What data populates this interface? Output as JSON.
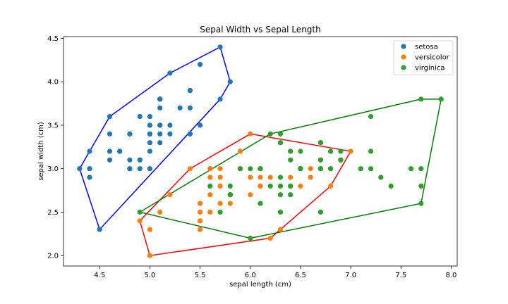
{
  "chart_data": {
    "type": "scatter",
    "title": "Sepal Width vs Sepal Length",
    "xlabel": "sepal length (cm)",
    "ylabel": "sepal width (cm)",
    "xlim": [
      4.14,
      8.06
    ],
    "ylim": [
      1.88,
      4.52
    ],
    "xticks": [
      4.5,
      5.0,
      5.5,
      6.0,
      6.5,
      7.0,
      7.5,
      8.0
    ],
    "xtick_labels": [
      "4.5",
      "5.0",
      "5.5",
      "6.0",
      "6.5",
      "7.0",
      "7.5",
      "8.0"
    ],
    "yticks": [
      2.0,
      2.5,
      3.0,
      3.5,
      4.0,
      4.5
    ],
    "ytick_labels": [
      "2.0",
      "2.5",
      "3.0",
      "3.5",
      "4.0",
      "4.5"
    ],
    "grid": false,
    "legend_position": "top-right",
    "series": [
      {
        "name": "setosa",
        "color": "#1f77b4",
        "points": [
          [
            5.1,
            3.5
          ],
          [
            4.9,
            3.0
          ],
          [
            4.7,
            3.2
          ],
          [
            4.6,
            3.1
          ],
          [
            5.0,
            3.6
          ],
          [
            5.4,
            3.9
          ],
          [
            4.6,
            3.4
          ],
          [
            5.0,
            3.4
          ],
          [
            4.4,
            2.9
          ],
          [
            4.9,
            3.1
          ],
          [
            5.4,
            3.7
          ],
          [
            4.8,
            3.4
          ],
          [
            4.8,
            3.0
          ],
          [
            4.3,
            3.0
          ],
          [
            5.8,
            4.0
          ],
          [
            5.7,
            4.4
          ],
          [
            5.4,
            3.9
          ],
          [
            5.1,
            3.5
          ],
          [
            5.7,
            3.8
          ],
          [
            5.1,
            3.8
          ],
          [
            5.4,
            3.4
          ],
          [
            5.1,
            3.7
          ],
          [
            4.6,
            3.6
          ],
          [
            5.1,
            3.3
          ],
          [
            4.8,
            3.4
          ],
          [
            5.0,
            3.0
          ],
          [
            5.0,
            3.4
          ],
          [
            5.2,
            3.5
          ],
          [
            5.2,
            3.4
          ],
          [
            4.7,
            3.2
          ],
          [
            4.8,
            3.1
          ],
          [
            5.4,
            3.4
          ],
          [
            5.2,
            4.1
          ],
          [
            5.5,
            4.2
          ],
          [
            4.9,
            3.1
          ],
          [
            5.0,
            3.2
          ],
          [
            5.5,
            3.5
          ],
          [
            4.9,
            3.6
          ],
          [
            4.4,
            3.0
          ],
          [
            5.1,
            3.4
          ],
          [
            5.0,
            3.5
          ],
          [
            4.5,
            2.3
          ],
          [
            4.4,
            3.2
          ],
          [
            5.0,
            3.5
          ],
          [
            5.1,
            3.8
          ],
          [
            4.8,
            3.0
          ],
          [
            5.1,
            3.8
          ],
          [
            4.6,
            3.2
          ],
          [
            5.3,
            3.7
          ],
          [
            5.0,
            3.3
          ]
        ],
        "hull": [
          [
            4.3,
            3.0
          ],
          [
            4.5,
            2.3
          ],
          [
            5.7,
            3.8
          ],
          [
            5.8,
            4.0
          ],
          [
            5.7,
            4.4
          ],
          [
            5.2,
            4.1
          ],
          [
            4.6,
            3.6
          ],
          [
            4.4,
            3.2
          ]
        ]
      },
      {
        "name": "versicolor",
        "color": "#ff7f0e",
        "points": [
          [
            7.0,
            3.2
          ],
          [
            6.4,
            3.2
          ],
          [
            6.9,
            3.1
          ],
          [
            5.5,
            2.3
          ],
          [
            6.5,
            2.8
          ],
          [
            5.7,
            2.8
          ],
          [
            6.3,
            3.3
          ],
          [
            4.9,
            2.4
          ],
          [
            6.6,
            2.9
          ],
          [
            5.2,
            2.7
          ],
          [
            5.0,
            2.0
          ],
          [
            5.9,
            3.0
          ],
          [
            6.0,
            2.2
          ],
          [
            6.1,
            2.9
          ],
          [
            5.6,
            2.9
          ],
          [
            6.7,
            3.1
          ],
          [
            5.6,
            3.0
          ],
          [
            5.8,
            2.7
          ],
          [
            6.2,
            2.2
          ],
          [
            5.6,
            2.5
          ],
          [
            5.9,
            3.2
          ],
          [
            6.1,
            2.8
          ],
          [
            6.3,
            2.5
          ],
          [
            6.1,
            2.8
          ],
          [
            6.4,
            2.9
          ],
          [
            6.6,
            3.0
          ],
          [
            6.8,
            2.8
          ],
          [
            6.7,
            3.0
          ],
          [
            6.0,
            2.9
          ],
          [
            5.7,
            2.6
          ],
          [
            5.5,
            2.4
          ],
          [
            5.5,
            2.4
          ],
          [
            5.8,
            2.7
          ],
          [
            6.0,
            2.7
          ],
          [
            5.4,
            3.0
          ],
          [
            6.0,
            3.4
          ],
          [
            6.7,
            3.1
          ],
          [
            6.3,
            2.3
          ],
          [
            5.6,
            3.0
          ],
          [
            5.5,
            2.5
          ],
          [
            5.5,
            2.6
          ],
          [
            6.1,
            3.0
          ],
          [
            5.8,
            2.6
          ],
          [
            5.0,
            2.3
          ],
          [
            5.6,
            2.7
          ],
          [
            5.7,
            3.0
          ],
          [
            5.7,
            2.9
          ],
          [
            6.2,
            2.9
          ],
          [
            5.1,
            2.5
          ],
          [
            5.7,
            2.8
          ]
        ],
        "hull": [
          [
            4.9,
            2.4
          ],
          [
            5.0,
            2.0
          ],
          [
            6.2,
            2.2
          ],
          [
            6.3,
            2.3
          ],
          [
            6.8,
            2.8
          ],
          [
            7.0,
            3.2
          ],
          [
            6.0,
            3.4
          ],
          [
            5.4,
            3.0
          ]
        ]
      },
      {
        "name": "virginica",
        "color": "#2ca02c",
        "points": [
          [
            6.3,
            3.3
          ],
          [
            5.8,
            2.7
          ],
          [
            7.1,
            3.0
          ],
          [
            6.3,
            2.9
          ],
          [
            6.5,
            3.0
          ],
          [
            7.6,
            3.0
          ],
          [
            4.9,
            2.5
          ],
          [
            7.3,
            2.9
          ],
          [
            6.7,
            2.5
          ],
          [
            7.2,
            3.6
          ],
          [
            6.5,
            3.2
          ],
          [
            6.4,
            2.7
          ],
          [
            6.8,
            3.0
          ],
          [
            5.7,
            2.5
          ],
          [
            5.8,
            2.8
          ],
          [
            6.4,
            3.2
          ],
          [
            6.5,
            3.0
          ],
          [
            7.7,
            3.8
          ],
          [
            7.7,
            2.6
          ],
          [
            6.0,
            2.2
          ],
          [
            6.9,
            3.2
          ],
          [
            5.6,
            2.8
          ],
          [
            7.7,
            2.8
          ],
          [
            6.3,
            2.7
          ],
          [
            6.7,
            3.3
          ],
          [
            7.2,
            3.2
          ],
          [
            6.2,
            2.8
          ],
          [
            6.1,
            3.0
          ],
          [
            6.4,
            2.8
          ],
          [
            7.2,
            3.0
          ],
          [
            7.4,
            2.8
          ],
          [
            7.9,
            3.8
          ],
          [
            6.4,
            2.8
          ],
          [
            6.3,
            2.8
          ],
          [
            6.1,
            2.6
          ],
          [
            7.7,
            3.0
          ],
          [
            6.3,
            3.4
          ],
          [
            6.4,
            3.1
          ],
          [
            6.0,
            3.0
          ],
          [
            6.9,
            3.1
          ],
          [
            6.7,
            3.1
          ],
          [
            6.9,
            3.1
          ],
          [
            5.8,
            2.7
          ],
          [
            6.8,
            3.2
          ],
          [
            6.7,
            3.3
          ],
          [
            6.7,
            3.0
          ],
          [
            6.3,
            2.5
          ],
          [
            6.5,
            3.0
          ],
          [
            6.2,
            3.4
          ],
          [
            5.9,
            3.0
          ]
        ],
        "hull": [
          [
            4.9,
            2.5
          ],
          [
            6.0,
            2.2
          ],
          [
            7.7,
            2.6
          ],
          [
            7.9,
            3.8
          ],
          [
            7.7,
            3.8
          ],
          [
            6.2,
            3.4
          ]
        ]
      }
    ]
  }
}
